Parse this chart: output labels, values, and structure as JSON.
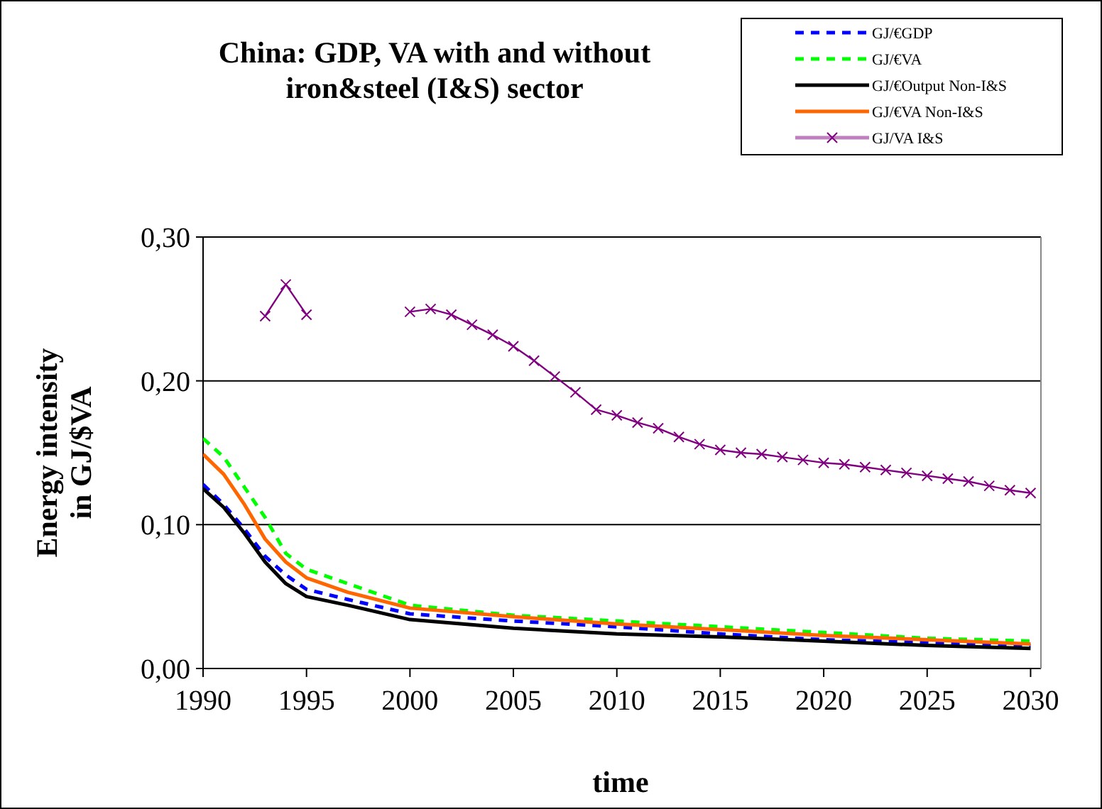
{
  "chart_data": {
    "type": "line",
    "title": "China: GDP, VA with and without iron&steel (I&S) sector",
    "xlabel": "time",
    "ylabel": "Energy intensity in GJ/$VA",
    "xlim": [
      1990,
      2030.5
    ],
    "ylim": [
      0,
      0.3
    ],
    "xticks": [
      1990,
      1995,
      2000,
      2005,
      2010,
      2015,
      2020,
      2025,
      2030
    ],
    "yticks": [
      {
        "value": 0,
        "label": "0,00"
      },
      {
        "value": 0.1,
        "label": "0,10"
      },
      {
        "value": 0.2,
        "label": "0,20"
      },
      {
        "value": 0.3,
        "label": "0,30"
      }
    ],
    "grid": "y",
    "legend": "top right",
    "series": [
      {
        "name": "GJ/€GDP",
        "color": "#0000ff",
        "line_style": "dashed",
        "marker": "none",
        "x": [
          1990,
          1991,
          1992,
          1993,
          1994,
          1995,
          1997,
          2000,
          2005,
          2010,
          2015,
          2020,
          2025,
          2030
        ],
        "values": [
          0.128,
          0.114,
          0.097,
          0.078,
          0.065,
          0.055,
          0.048,
          0.038,
          0.033,
          0.029,
          0.024,
          0.02,
          0.018,
          0.016
        ]
      },
      {
        "name": "GJ/€VA",
        "color": "#00ff00",
        "line_style": "dashed",
        "marker": "none",
        "x": [
          1990,
          1991,
          1992,
          1993,
          1994,
          1995,
          1997,
          2000,
          2005,
          2010,
          2015,
          2020,
          2025,
          2030
        ],
        "values": [
          0.16,
          0.147,
          0.126,
          0.105,
          0.08,
          0.069,
          0.059,
          0.044,
          0.037,
          0.033,
          0.029,
          0.025,
          0.021,
          0.019
        ]
      },
      {
        "name": "GJ/€Output Non-I&S",
        "color": "#000000",
        "line_style": "solid",
        "marker": "none",
        "x": [
          1990,
          1991,
          1992,
          1993,
          1994,
          1995,
          1997,
          2000,
          2005,
          2010,
          2015,
          2020,
          2025,
          2030
        ],
        "values": [
          0.125,
          0.112,
          0.094,
          0.074,
          0.059,
          0.05,
          0.044,
          0.034,
          0.028,
          0.024,
          0.022,
          0.019,
          0.016,
          0.014
        ]
      },
      {
        "name": "GJ/€VA Non-I&S",
        "color": "#ff6600",
        "line_style": "solid",
        "marker": "none",
        "x": [
          1990,
          1991,
          1992,
          1993,
          1994,
          1995,
          1997,
          2000,
          2005,
          2010,
          2015,
          2020,
          2025,
          2030
        ],
        "values": [
          0.149,
          0.135,
          0.114,
          0.09,
          0.074,
          0.063,
          0.053,
          0.042,
          0.036,
          0.031,
          0.027,
          0.023,
          0.02,
          0.017
        ]
      },
      {
        "name": "GJ/VA I&S",
        "color": "#800080",
        "line_style": "solid",
        "marker": "cross",
        "x": [
          1993,
          1994,
          1995,
          1996,
          1997,
          1998,
          1999,
          2000,
          2001,
          2002,
          2003,
          2004,
          2005,
          2006,
          2007,
          2008,
          2009,
          2010,
          2011,
          2012,
          2013,
          2014,
          2015,
          2016,
          2017,
          2018,
          2019,
          2020,
          2021,
          2022,
          2023,
          2024,
          2025,
          2026,
          2027,
          2028,
          2029,
          2030
        ],
        "values": [
          0.245,
          0.267,
          0.246,
          null,
          null,
          null,
          null,
          0.248,
          0.25,
          0.246,
          0.239,
          0.232,
          0.224,
          0.214,
          0.203,
          0.192,
          0.18,
          0.176,
          0.171,
          0.167,
          0.161,
          0.156,
          0.152,
          0.15,
          0.149,
          0.147,
          0.145,
          0.143,
          0.142,
          0.14,
          0.138,
          0.136,
          0.134,
          0.132,
          0.13,
          0.127,
          0.124,
          0.122
        ]
      }
    ]
  }
}
